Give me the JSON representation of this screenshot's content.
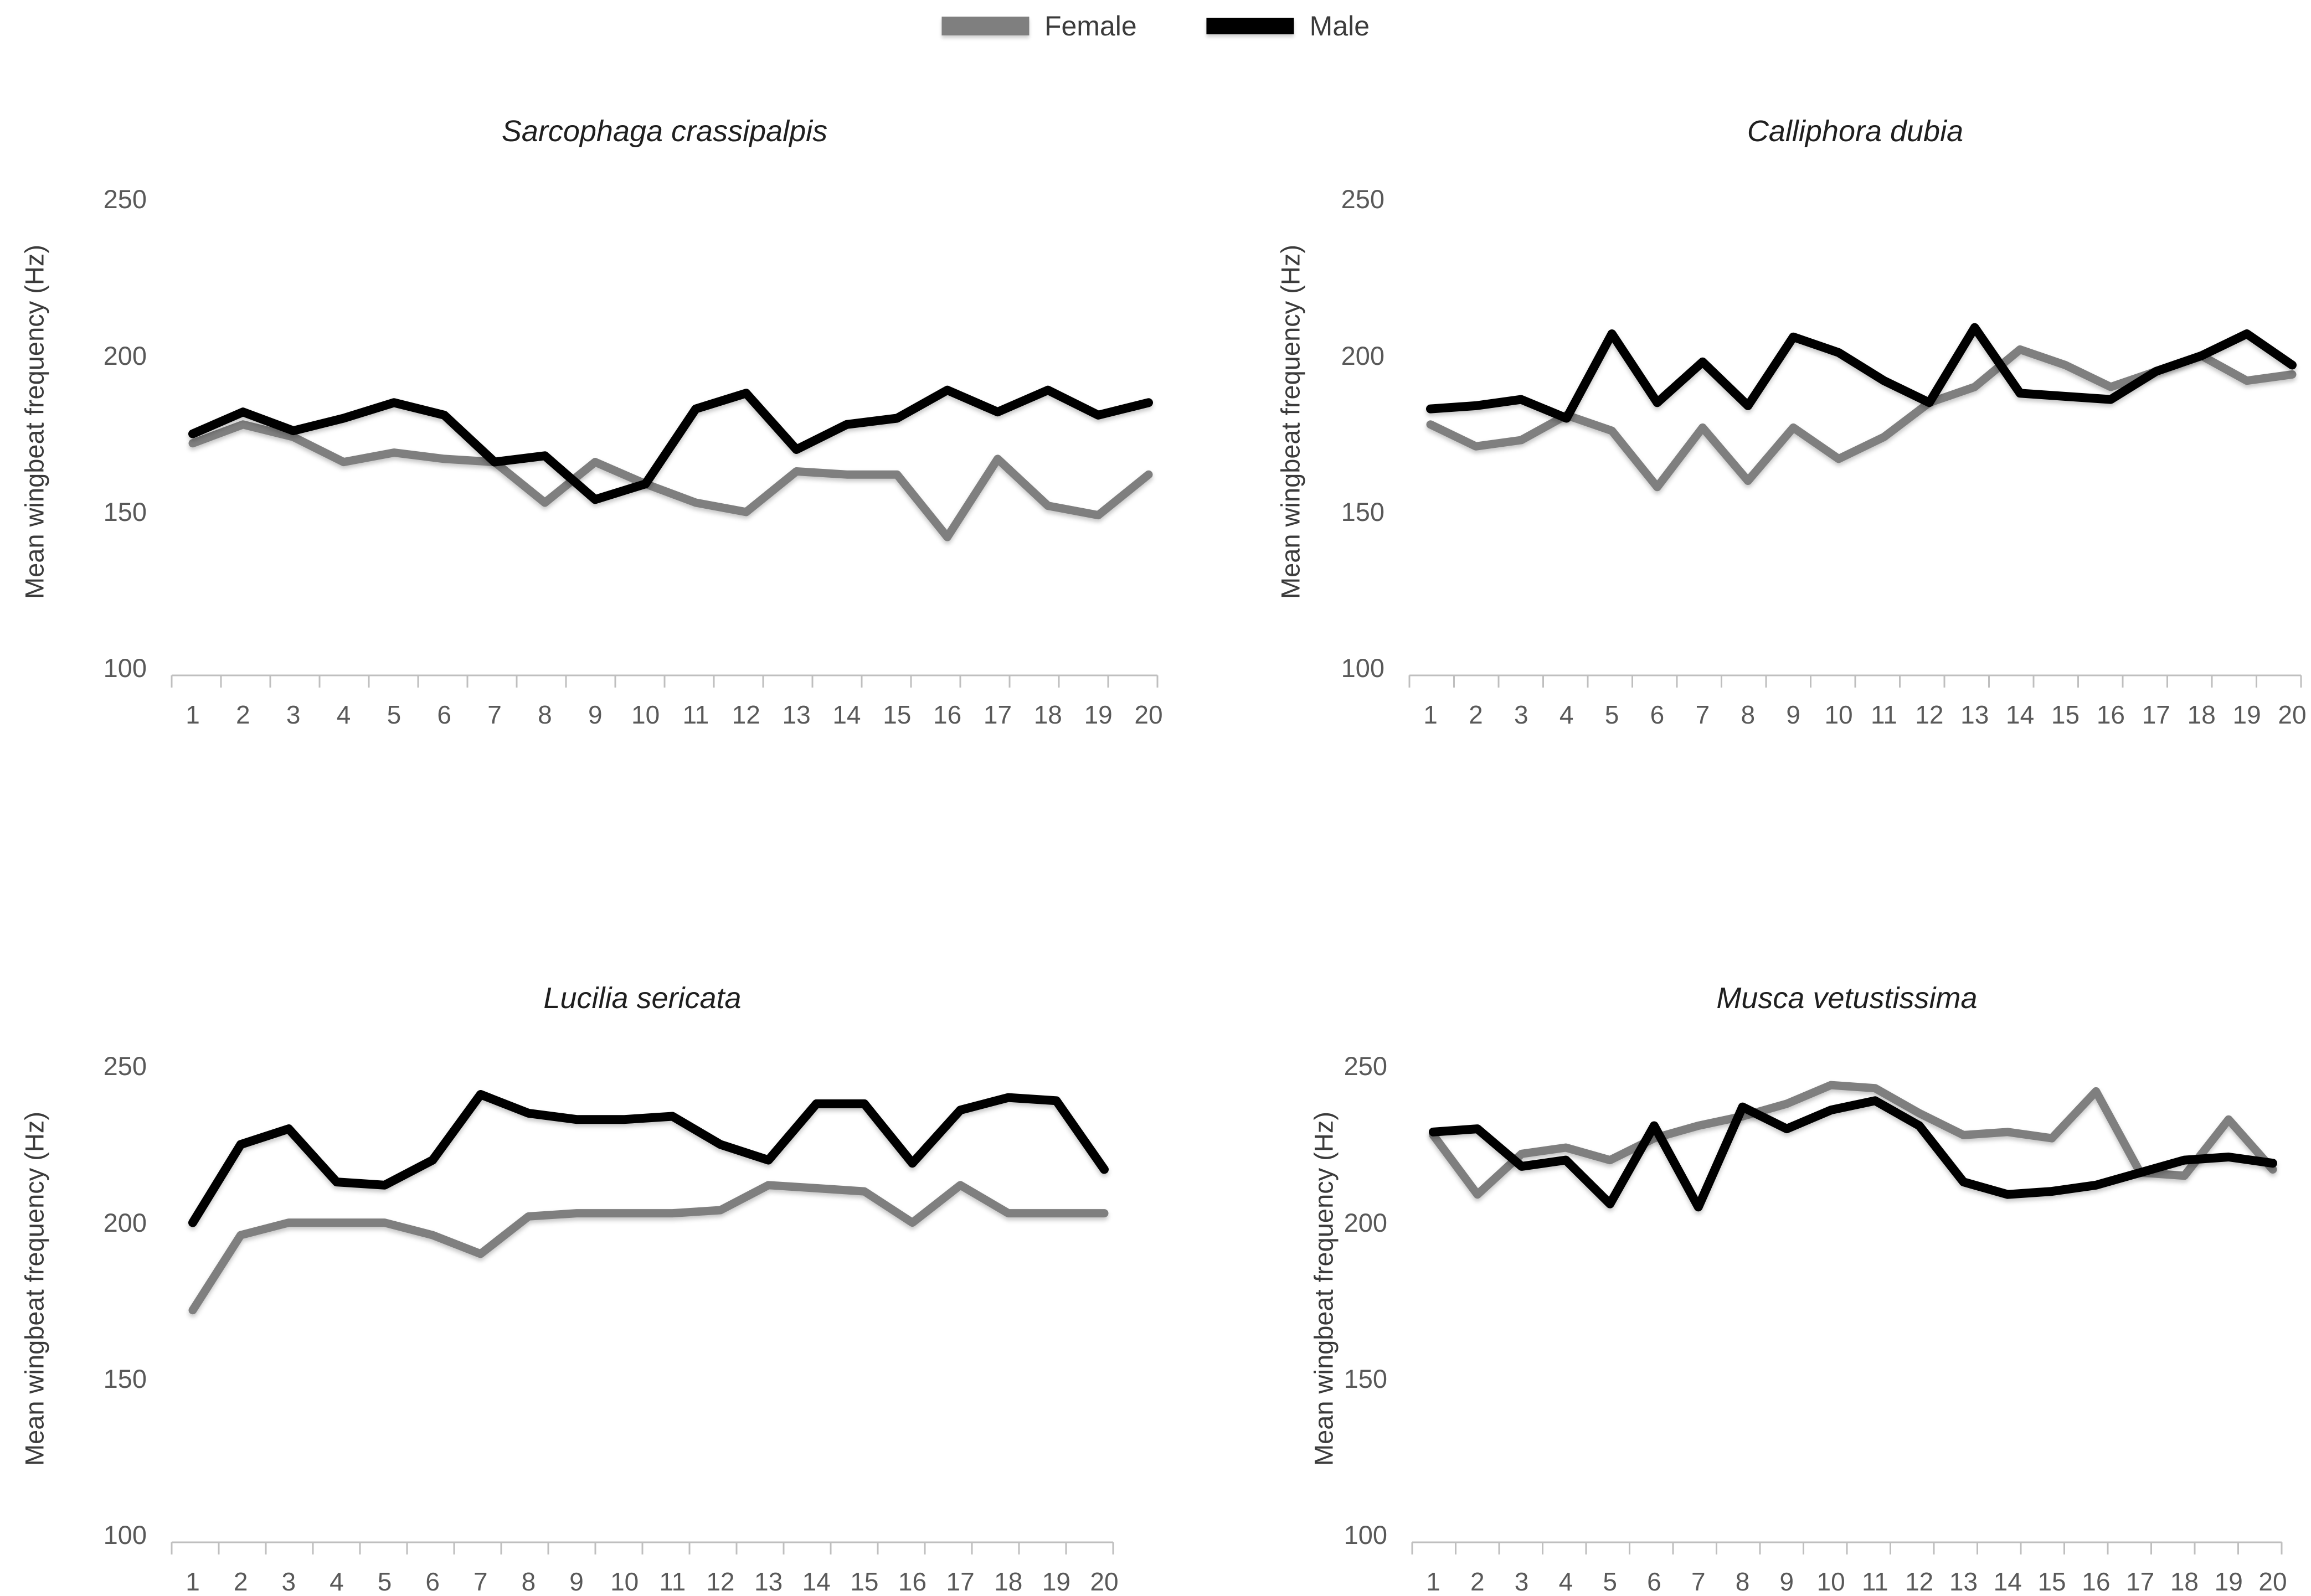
{
  "legend": {
    "female_label": "Female",
    "male_label": "Male"
  },
  "colors": {
    "female": "#7F7F7F",
    "male": "#000000",
    "tick_text": "#595959",
    "axis_line": "#BFBFBF",
    "title_text": "#1F1F1F"
  },
  "chart_data": [
    {
      "type": "line",
      "title": "Sarcophaga crassipalpis",
      "ylabel": "Mean wingbeat frequency (Hz)",
      "xlabel": "",
      "categories": [
        1,
        2,
        3,
        4,
        5,
        6,
        7,
        8,
        9,
        10,
        11,
        12,
        13,
        14,
        15,
        16,
        17,
        18,
        19,
        20
      ],
      "yticks": [
        250,
        200,
        150,
        100
      ],
      "ylim": [
        100,
        250
      ],
      "grid": false,
      "legend_position": "top-center",
      "series": [
        {
          "name": "Female",
          "color_key": "female",
          "values": [
            172,
            178,
            174,
            166,
            169,
            167,
            166,
            153,
            166,
            159,
            153,
            150,
            163,
            162,
            162,
            142,
            167,
            152,
            149,
            162
          ]
        },
        {
          "name": "Male",
          "color_key": "male",
          "values": [
            175,
            182,
            176,
            180,
            185,
            181,
            166,
            168,
            154,
            159,
            183,
            188,
            170,
            178,
            180,
            189,
            182,
            189,
            181,
            185
          ]
        }
      ]
    },
    {
      "type": "line",
      "title": "Calliphora dubia",
      "ylabel": "Mean wingbeat frequency (Hz)",
      "xlabel": "",
      "categories": [
        1,
        2,
        3,
        4,
        5,
        6,
        7,
        8,
        9,
        10,
        11,
        12,
        13,
        14,
        15,
        16,
        17,
        18,
        19,
        20
      ],
      "yticks": [
        250,
        200,
        150,
        100
      ],
      "ylim": [
        100,
        250
      ],
      "grid": false,
      "legend_position": "top-center",
      "series": [
        {
          "name": "Female",
          "color_key": "female",
          "values": [
            178,
            171,
            173,
            181,
            176,
            158,
            177,
            160,
            177,
            167,
            174,
            185,
            190,
            202,
            197,
            190,
            195,
            200,
            192,
            194
          ]
        },
        {
          "name": "Male",
          "color_key": "male",
          "values": [
            183,
            184,
            186,
            180,
            207,
            185,
            198,
            184,
            206,
            201,
            192,
            185,
            209,
            188,
            187,
            186,
            195,
            200,
            207,
            197
          ]
        }
      ]
    },
    {
      "type": "line",
      "title": "Lucilia sericata",
      "ylabel": "Mean wingbeat frequency (Hz)",
      "xlabel": "",
      "categories": [
        1,
        2,
        3,
        4,
        5,
        6,
        7,
        8,
        9,
        10,
        11,
        12,
        13,
        14,
        15,
        16,
        17,
        18,
        19,
        20
      ],
      "yticks": [
        250,
        200,
        150,
        100
      ],
      "ylim": [
        100,
        250
      ],
      "grid": false,
      "legend_position": "top-center",
      "series": [
        {
          "name": "Female",
          "color_key": "female",
          "values": [
            172,
            196,
            200,
            200,
            200,
            196,
            190,
            202,
            203,
            203,
            203,
            204,
            212,
            211,
            210,
            200,
            212,
            203,
            203,
            203
          ]
        },
        {
          "name": "Male",
          "color_key": "male",
          "values": [
            200,
            225,
            230,
            213,
            212,
            220,
            241,
            235,
            233,
            233,
            234,
            225,
            220,
            238,
            238,
            219,
            236,
            240,
            239,
            217
          ]
        }
      ]
    },
    {
      "type": "line",
      "title": "Musca vetustissima",
      "ylabel": "Mean wingbeat frequency (Hz)",
      "xlabel": "",
      "categories": [
        1,
        2,
        3,
        4,
        5,
        6,
        7,
        8,
        9,
        10,
        11,
        12,
        13,
        14,
        15,
        16,
        17,
        18,
        19,
        20
      ],
      "yticks": [
        250,
        200,
        150,
        100
      ],
      "ylim": [
        100,
        250
      ],
      "grid": false,
      "legend_position": "top-center",
      "series": [
        {
          "name": "Female",
          "color_key": "female",
          "values": [
            228,
            209,
            222,
            224,
            220,
            227,
            231,
            234,
            238,
            244,
            243,
            235,
            228,
            229,
            227,
            242,
            216,
            215,
            233,
            217
          ]
        },
        {
          "name": "Male",
          "color_key": "male",
          "values": [
            229,
            230,
            218,
            220,
            206,
            231,
            205,
            237,
            230,
            236,
            239,
            231,
            213,
            209,
            210,
            212,
            216,
            220,
            221,
            219
          ]
        }
      ]
    }
  ]
}
